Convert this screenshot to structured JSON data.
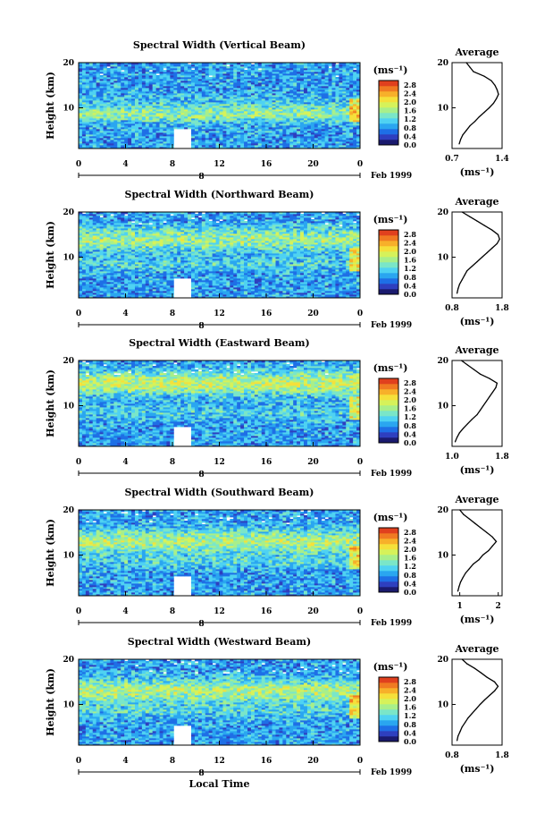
{
  "figure": {
    "xlabel": "Local Time",
    "date_label": "Feb 1999",
    "date_marker": "8",
    "ylabel": "Height (km)",
    "avg_title": "Average",
    "unit": "(ms⁻¹)",
    "colormap": [
      "#1a1a6e",
      "#2e3fbf",
      "#1e6fe6",
      "#2aa6f0",
      "#4fd2f2",
      "#7ae6c8",
      "#a8ef8a",
      "#d6f25a",
      "#f5e03a",
      "#f7b02a",
      "#f07a22",
      "#e0401e"
    ]
  },
  "chart_data": [
    {
      "type": "heatmap",
      "title": "Spectral Width (Vertical Beam)",
      "x_ticks": [
        "0",
        "4",
        "8",
        "12",
        "16",
        "20",
        "0"
      ],
      "y_ticks": [
        "20",
        "10"
      ],
      "xlim": [
        0,
        24
      ],
      "ylim": [
        1,
        20
      ],
      "colorbar_ticks": [
        "2.8",
        "2.4",
        "2.0",
        "1.6",
        "1.2",
        "0.8",
        "0.4",
        "0.0"
      ],
      "clim": [
        0.0,
        3.0
      ],
      "base": 0.85,
      "band_center": 10,
      "band_amp": 0.3,
      "average_profile": {
        "x_ticks": [
          "0.7",
          "1.4"
        ],
        "xlim": [
          0.7,
          1.4
        ],
        "ylim": [
          1,
          20
        ],
        "height": [
          2,
          3,
          4,
          5,
          6,
          7,
          8,
          9,
          10,
          11,
          12,
          13,
          14,
          15,
          16,
          17,
          18,
          19,
          20
        ],
        "width": [
          0.8,
          0.82,
          0.85,
          0.9,
          0.95,
          1.02,
          1.08,
          1.15,
          1.22,
          1.28,
          1.32,
          1.35,
          1.33,
          1.3,
          1.25,
          1.15,
          1.0,
          0.95,
          0.9
        ]
      }
    },
    {
      "type": "heatmap",
      "title": "Spectral Width (Northward Beam)",
      "x_ticks": [
        "0",
        "4",
        "8",
        "12",
        "16",
        "20",
        "0"
      ],
      "y_ticks": [
        "20",
        "10"
      ],
      "xlim": [
        0,
        24
      ],
      "ylim": [
        1,
        20
      ],
      "colorbar_ticks": [
        "2.8",
        "2.4",
        "2.0",
        "1.6",
        "1.2",
        "0.8",
        "0.4",
        "0.0"
      ],
      "clim": [
        0.0,
        3.0
      ],
      "base": 0.85,
      "band_center": 14,
      "band_amp": 0.75,
      "average_profile": {
        "x_ticks": [
          "0.8",
          "1.8"
        ],
        "xlim": [
          0.8,
          1.8
        ],
        "ylim": [
          1,
          20
        ],
        "height": [
          2,
          3,
          4,
          5,
          6,
          7,
          8,
          9,
          10,
          11,
          12,
          13,
          14,
          15,
          16,
          17,
          18,
          19,
          20
        ],
        "width": [
          0.9,
          0.92,
          0.95,
          1.0,
          1.05,
          1.1,
          1.2,
          1.3,
          1.4,
          1.5,
          1.6,
          1.7,
          1.75,
          1.72,
          1.6,
          1.45,
          1.3,
          1.15,
          1.0
        ]
      }
    },
    {
      "type": "heatmap",
      "title": "Spectral Width (Eastward Beam)",
      "x_ticks": [
        "0",
        "4",
        "8",
        "12",
        "16",
        "20",
        "0"
      ],
      "y_ticks": [
        "20",
        "10"
      ],
      "xlim": [
        0,
        24
      ],
      "ylim": [
        1,
        20
      ],
      "colorbar_ticks": [
        "2.8",
        "2.4",
        "2.0",
        "1.6",
        "1.2",
        "0.8",
        "0.4",
        "0.0"
      ],
      "clim": [
        0.0,
        3.0
      ],
      "base": 0.85,
      "band_center": 15,
      "band_amp": 0.95,
      "average_profile": {
        "x_ticks": [
          "1.0",
          "1.8"
        ],
        "xlim": [
          1.0,
          1.8
        ],
        "ylim": [
          1,
          20
        ],
        "height": [
          2,
          3,
          4,
          5,
          6,
          7,
          8,
          9,
          10,
          11,
          12,
          13,
          14,
          15,
          16,
          17,
          18,
          19,
          20
        ],
        "width": [
          1.05,
          1.08,
          1.12,
          1.18,
          1.25,
          1.32,
          1.4,
          1.45,
          1.5,
          1.55,
          1.6,
          1.65,
          1.7,
          1.72,
          1.6,
          1.45,
          1.35,
          1.25,
          1.15
        ]
      }
    },
    {
      "type": "heatmap",
      "title": "Spectral Width (Southward Beam)",
      "x_ticks": [
        "0",
        "4",
        "8",
        "12",
        "16",
        "20",
        "0"
      ],
      "y_ticks": [
        "20",
        "10"
      ],
      "xlim": [
        0,
        24
      ],
      "ylim": [
        1,
        20
      ],
      "colorbar_ticks": [
        "2.8",
        "2.4",
        "2.0",
        "1.6",
        "1.2",
        "0.8",
        "0.4",
        "0.0"
      ],
      "clim": [
        0.0,
        3.0
      ],
      "base": 0.85,
      "band_center": 13,
      "band_amp": 0.85,
      "average_profile": {
        "x_ticks": [
          "1",
          "2"
        ],
        "xlim": [
          0.8,
          2.1
        ],
        "ylim": [
          1,
          20
        ],
        "height": [
          2,
          3,
          4,
          5,
          6,
          7,
          8,
          9,
          10,
          11,
          12,
          13,
          14,
          15,
          16,
          17,
          18,
          19,
          20
        ],
        "width": [
          0.95,
          0.98,
          1.02,
          1.08,
          1.15,
          1.25,
          1.35,
          1.5,
          1.6,
          1.75,
          1.85,
          1.95,
          1.85,
          1.7,
          1.55,
          1.4,
          1.25,
          1.1,
          1.0
        ]
      }
    },
    {
      "type": "heatmap",
      "title": "Spectral Width (Westward Beam)",
      "x_ticks": [
        "0",
        "4",
        "8",
        "12",
        "16",
        "20",
        "0"
      ],
      "y_ticks": [
        "20",
        "10"
      ],
      "xlim": [
        0,
        24
      ],
      "ylim": [
        1,
        20
      ],
      "colorbar_ticks": [
        "2.8",
        "2.4",
        "2.0",
        "1.6",
        "1.2",
        "0.8",
        "0.4",
        "0.0"
      ],
      "clim": [
        0.0,
        3.0
      ],
      "base": 0.85,
      "band_center": 13,
      "band_amp": 0.85,
      "average_profile": {
        "x_ticks": [
          "0.8",
          "1.8"
        ],
        "xlim": [
          0.8,
          1.8
        ],
        "ylim": [
          1,
          20
        ],
        "height": [
          2,
          3,
          4,
          5,
          6,
          7,
          8,
          9,
          10,
          11,
          12,
          13,
          14,
          15,
          16,
          17,
          18,
          19,
          20
        ],
        "width": [
          0.9,
          0.92,
          0.96,
          1.0,
          1.06,
          1.12,
          1.2,
          1.28,
          1.36,
          1.45,
          1.55,
          1.65,
          1.72,
          1.65,
          1.5,
          1.38,
          1.25,
          1.1,
          1.0
        ]
      }
    }
  ]
}
